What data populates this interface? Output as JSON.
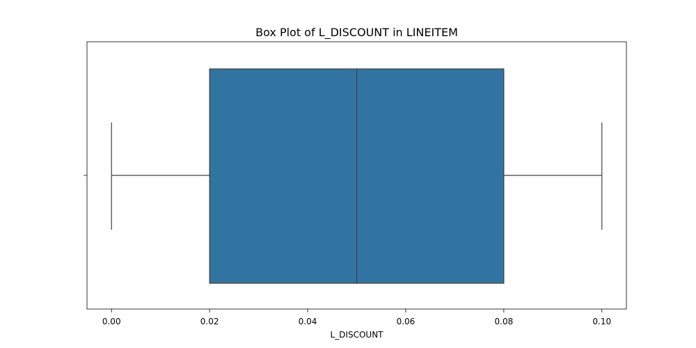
{
  "chart_data": {
    "type": "box",
    "title": "Box Plot of L_DISCOUNT in LINEITEM",
    "xlabel": "L_DISCOUNT",
    "ylabel": "",
    "orientation": "horizontal",
    "xlim": [
      -0.005,
      0.105
    ],
    "x_ticks": [
      0.0,
      0.02,
      0.04,
      0.06,
      0.08,
      0.1
    ],
    "x_tick_labels": [
      "0.00",
      "0.02",
      "0.04",
      "0.06",
      "0.08",
      "0.10"
    ],
    "grid": false,
    "legend": "none",
    "box": {
      "whisker_low": 0.0,
      "q1": 0.02,
      "median": 0.05,
      "q3": 0.08,
      "whisker_high": 0.1,
      "fill_color": "#3274a1",
      "line_color": "#3f3f3f"
    }
  }
}
